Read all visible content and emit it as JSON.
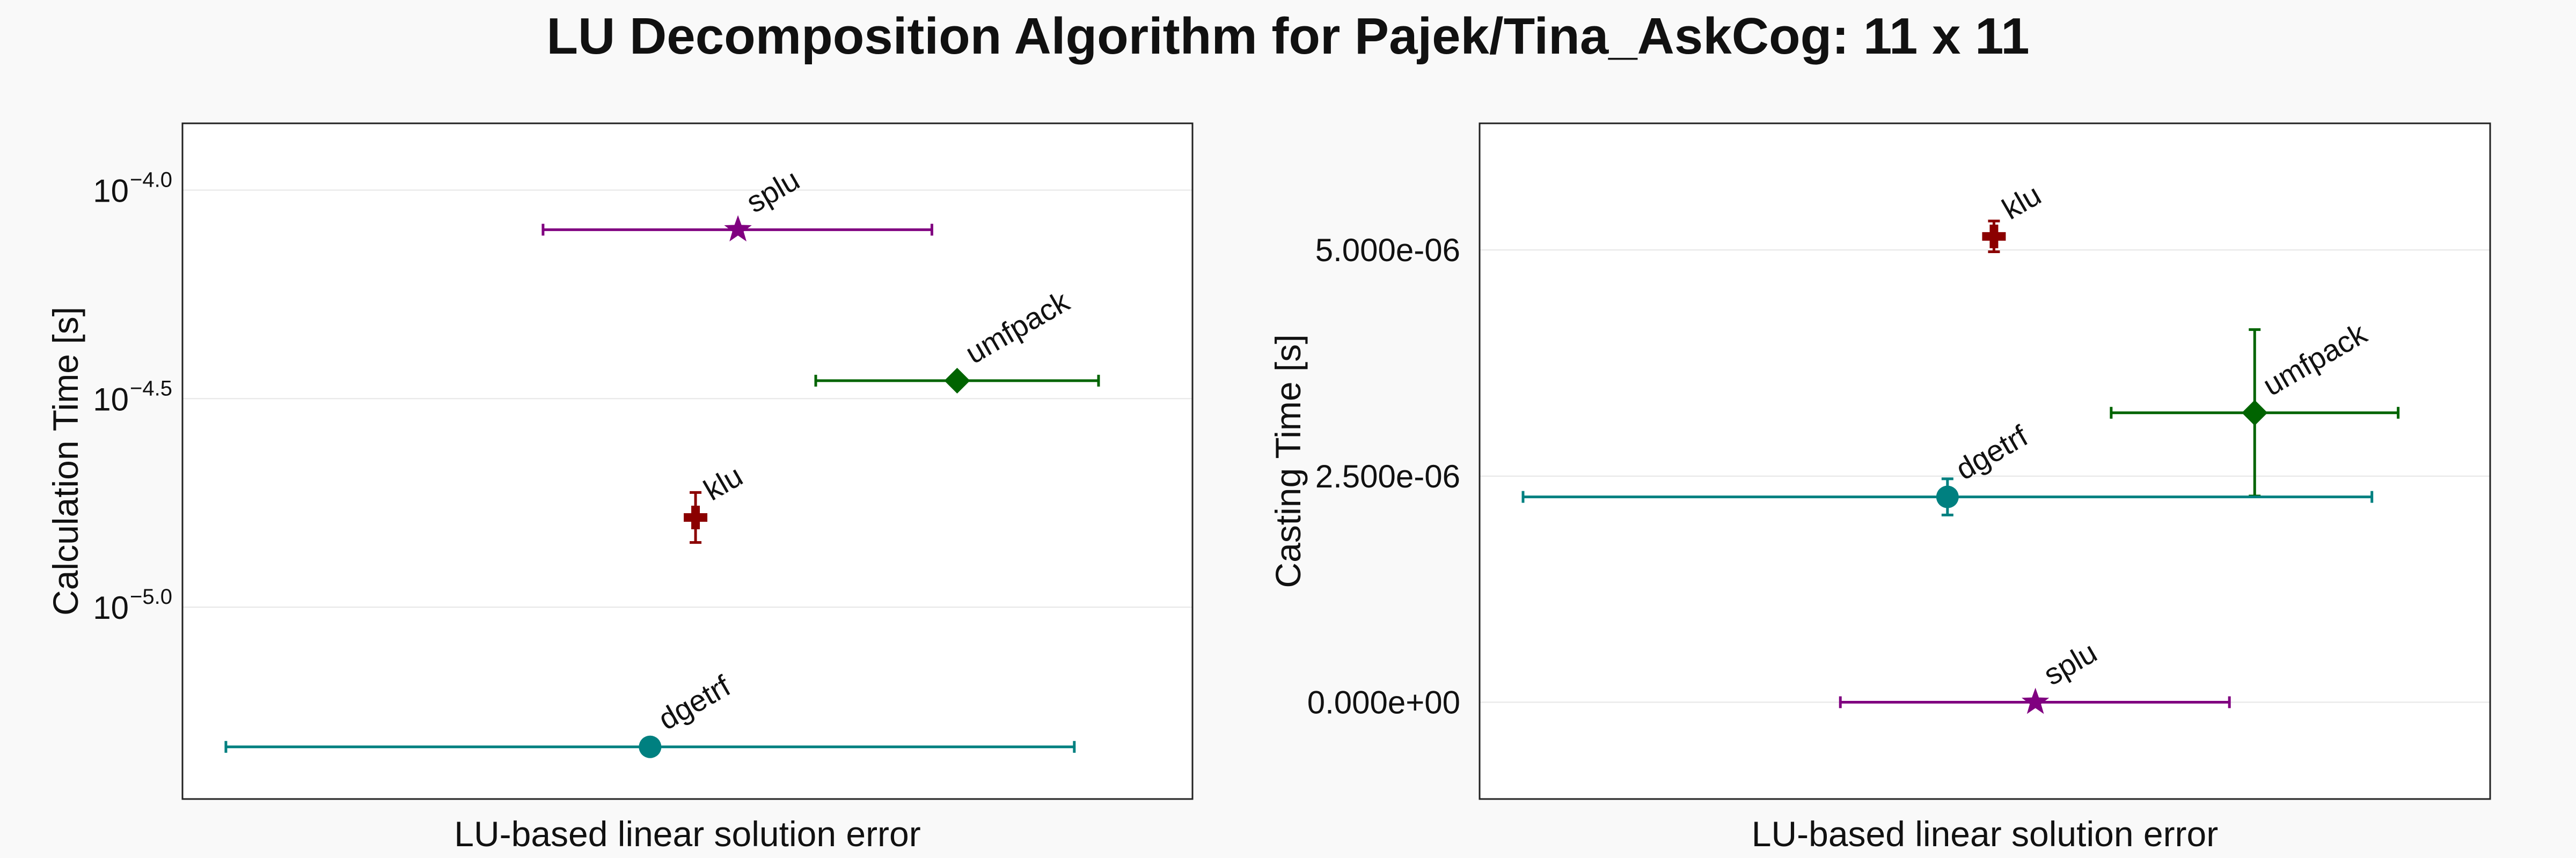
{
  "title": "LU Decomposition Algorithm for Pajek/Tina_AskCog: 11 x 11",
  "colors": {
    "splu": "#800080",
    "umfpack": "#006400",
    "klu": "#8b0000",
    "dgetrf": "#008080",
    "background": "#f9f9f9",
    "grid": "#e6e6e6"
  },
  "chart_data": [
    {
      "type": "scatter",
      "xlabel": "LU-based linear solution error",
      "ylabel": "Calculation Time [s]",
      "yscale": "log10",
      "ylim_log10": [
        -5.46,
        -3.84
      ],
      "yticks": [
        {
          "base": "10",
          "exp": "−4.0",
          "value_log10": -4.0
        },
        {
          "base": "10",
          "exp": "−4.5",
          "value_log10": -4.5
        },
        {
          "base": "10",
          "exp": "−5.0",
          "value_log10": -5.0
        }
      ],
      "grid": true,
      "points": [
        {
          "label": "splu",
          "x": 0.55,
          "xerr": [
            0.193,
            0.192
          ],
          "y_log10": -4.095,
          "yerr_log10": [
            0,
            0
          ],
          "marker": "star"
        },
        {
          "label": "umfpack",
          "x": 0.767,
          "xerr": [
            0.14,
            0.14
          ],
          "y_log10": -4.457,
          "yerr_log10": [
            0,
            0
          ],
          "marker": "diamond"
        },
        {
          "label": "klu",
          "x": 0.508,
          "xerr": [
            0,
            0
          ],
          "y_log10": -4.785,
          "yerr_log10": [
            0.06,
            0.06
          ],
          "marker": "cross"
        },
        {
          "label": "dgetrf",
          "x": 0.463,
          "xerr": [
            0.42,
            0.42
          ],
          "y_log10": -5.335,
          "yerr_log10": [
            0,
            0
          ],
          "marker": "circle"
        }
      ]
    },
    {
      "type": "scatter",
      "xlabel": "LU-based linear solution error",
      "ylabel": "Casting Time [s]",
      "yscale": "linear",
      "ylim": [
        -1.07e-06,
        6.4e-06
      ],
      "yticks": [
        {
          "label": "0.000e+00",
          "value": 0
        },
        {
          "label": "2.500e-06",
          "value": 2.5e-06
        },
        {
          "label": "5.000e-06",
          "value": 5e-06
        }
      ],
      "grid": true,
      "points": [
        {
          "label": "klu",
          "x": 0.509,
          "xerr": [
            0,
            0
          ],
          "y": 5.15e-06,
          "yerr": [
            1.7e-07,
            1.7e-07
          ],
          "marker": "cross"
        },
        {
          "label": "umfpack",
          "x": 0.767,
          "xerr": [
            0.142,
            0.142
          ],
          "y": 3.2e-06,
          "yerr": [
            9.2e-07,
            9.2e-07
          ],
          "marker": "diamond"
        },
        {
          "label": "dgetrf",
          "x": 0.463,
          "xerr": [
            0.42,
            0.42
          ],
          "y": 2.27e-06,
          "yerr": [
            2e-07,
            2e-07
          ],
          "marker": "circle"
        },
        {
          "label": "splu",
          "x": 0.55,
          "xerr": [
            0.193,
            0.192
          ],
          "y": 0.0,
          "yerr": [
            0,
            0
          ],
          "marker": "star"
        }
      ]
    }
  ]
}
